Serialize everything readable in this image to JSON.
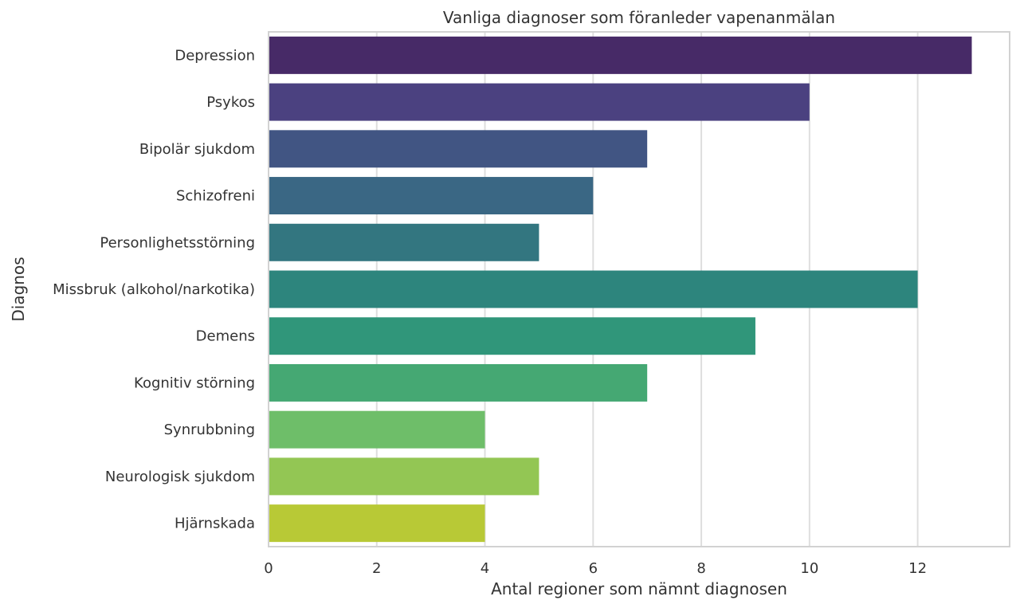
{
  "chart_data": {
    "type": "bar",
    "orientation": "horizontal",
    "title": "Vanliga diagnoser som föranleder vapenanmälan",
    "xlabel": "Antal regioner som nämnt diagnosen",
    "ylabel": "Diagnos",
    "xlim": [
      0,
      13.7
    ],
    "xticks": [
      "0",
      "2",
      "4",
      "6",
      "8",
      "10",
      "12"
    ],
    "grid": "vertical",
    "categories": [
      "Depression",
      "Psykos",
      "Bipolär sjukdom",
      "Schizofreni",
      "Personlighetsstörning",
      "Missbruk (alkohol/narkotika)",
      "Demens",
      "Kognitiv störning",
      "Synrubbning",
      "Neurologisk sjukdom",
      "Hjärnskada"
    ],
    "values": [
      13,
      10,
      7,
      6,
      5,
      12,
      9,
      7,
      4,
      5,
      4
    ],
    "colors": [
      "#472a67",
      "#4b4180",
      "#415583",
      "#3a6784",
      "#337680",
      "#2d857d",
      "#30967a",
      "#45a873",
      "#6ebe69",
      "#93c654",
      "#b8c936"
    ]
  }
}
